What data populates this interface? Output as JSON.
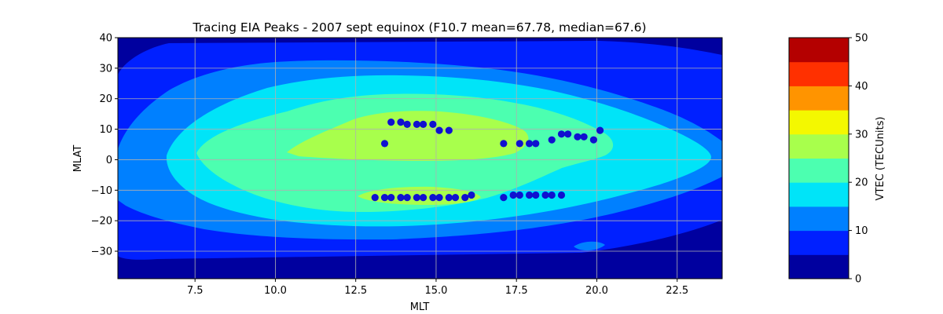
{
  "chart_data": {
    "type": "contour",
    "title": "Tracing EIA Peaks - 2007 sept equinox (F10.7 mean=67.78, median=67.6)",
    "xlabel": "MLT",
    "ylabel": "MLAT",
    "xlim": [
      5.1,
      23.9
    ],
    "ylim": [
      -39,
      40
    ],
    "xticks": [
      7.5,
      10.0,
      12.5,
      15.0,
      17.5,
      20.0,
      22.5
    ],
    "xtick_labels": [
      "7.5",
      "10.0",
      "12.5",
      "15.0",
      "17.5",
      "20.0",
      "22.5"
    ],
    "yticks": [
      -30,
      -20,
      -10,
      0,
      10,
      20,
      30,
      40
    ],
    "ytick_labels": [
      "−30",
      "−20",
      "−10",
      "0",
      "10",
      "20",
      "30",
      "40"
    ],
    "grid": true,
    "colorbar": {
      "label": "VTEC (TECUnits)",
      "range": [
        0,
        50
      ],
      "levels": [
        0,
        5,
        10,
        15,
        20,
        25,
        30,
        35,
        40,
        45,
        50
      ],
      "colors": [
        "#00009f",
        "#0020ff",
        "#0080ff",
        "#00e4f8",
        "#4cffb0",
        "#a8ff4c",
        "#f4f800",
        "#ff9400",
        "#ff3000",
        "#b40000"
      ],
      "ticks": [
        0,
        10,
        20,
        30,
        40,
        50
      ],
      "tick_labels": [
        "0",
        "10",
        "20",
        "30",
        "40",
        "50"
      ]
    },
    "peaks": {
      "color": "#1010d0",
      "points": [
        [
          13.4,
          5.3
        ],
        [
          13.6,
          12.3
        ],
        [
          13.9,
          12.3
        ],
        [
          14.1,
          11.6
        ],
        [
          14.4,
          11.6
        ],
        [
          14.6,
          11.6
        ],
        [
          14.9,
          11.6
        ],
        [
          15.1,
          9.6
        ],
        [
          15.4,
          9.6
        ],
        [
          17.1,
          5.3
        ],
        [
          17.6,
          5.3
        ],
        [
          17.9,
          5.3
        ],
        [
          18.1,
          5.3
        ],
        [
          18.6,
          6.5
        ],
        [
          18.9,
          8.4
        ],
        [
          19.1,
          8.4
        ],
        [
          19.4,
          7.5
        ],
        [
          19.6,
          7.5
        ],
        [
          19.9,
          6.5
        ],
        [
          20.1,
          9.6
        ],
        [
          13.1,
          -12.4
        ],
        [
          13.4,
          -12.4
        ],
        [
          13.6,
          -12.4
        ],
        [
          13.9,
          -12.4
        ],
        [
          14.1,
          -12.4
        ],
        [
          14.4,
          -12.4
        ],
        [
          14.6,
          -12.4
        ],
        [
          14.9,
          -12.4
        ],
        [
          15.1,
          -12.4
        ],
        [
          15.4,
          -12.4
        ],
        [
          15.6,
          -12.4
        ],
        [
          15.9,
          -12.4
        ],
        [
          16.1,
          -11.6
        ],
        [
          17.1,
          -12.4
        ],
        [
          17.4,
          -11.6
        ],
        [
          17.6,
          -11.6
        ],
        [
          17.9,
          -11.6
        ],
        [
          18.1,
          -11.6
        ],
        [
          18.4,
          -11.6
        ],
        [
          18.6,
          -11.6
        ],
        [
          18.9,
          -11.6
        ]
      ]
    }
  }
}
